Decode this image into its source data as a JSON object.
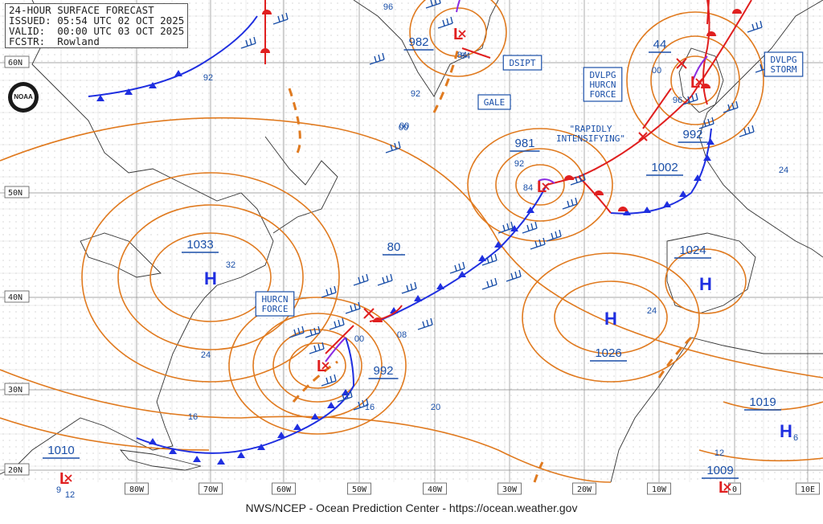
{
  "header": {
    "title": "24-HOUR SURFACE FORECAST",
    "issued": "ISSUED: 05:54 UTC 02 OCT 2025",
    "valid": "VALID:  00:00 UTC 03 OCT 2025",
    "forecaster": "FCSTR:  Rowland"
  },
  "footer": "NWS/NCEP - Ocean Prediction Center - https://ocean.weather.gov",
  "logo_text": "NOAA",
  "lat_labels": [
    "60N",
    "50N",
    "40N",
    "30N",
    "20N"
  ],
  "lon_labels": [
    "80W",
    "70W",
    "60W",
    "50W",
    "40W",
    "30W",
    "20W",
    "10W",
    "0",
    "10E"
  ],
  "pressure_centers": [
    {
      "type": "L",
      "value": "982"
    },
    {
      "type": "L",
      "value": "981"
    },
    {
      "type": "L",
      "value": "992"
    },
    {
      "type": "L",
      "value": "992"
    },
    {
      "type": "L",
      "value": "1010"
    },
    {
      "type": "L",
      "value": "1009"
    },
    {
      "type": "L",
      "value": "1002"
    },
    {
      "type": "H",
      "value": "1033"
    },
    {
      "type": "H",
      "value": "1026"
    },
    {
      "type": "H",
      "value": "1024"
    },
    {
      "type": "H",
      "value": "1019"
    },
    {
      "type": "H",
      "value": "44"
    },
    {
      "type": "H",
      "value": "80"
    }
  ],
  "warning_boxes": [
    "DSIPT",
    "GALE",
    "DVLPG\nHURCN\nFORCE",
    "DVLPG\nSTORM",
    "HURCN\nFORCE"
  ],
  "annotation": "\"RAPIDLY\nINTENSIFYING\"",
  "isobar_labels": [
    "96",
    "92",
    "00",
    "84",
    "92",
    "84",
    "00",
    "96",
    "24",
    "32",
    "24",
    "16",
    "08",
    "00",
    "16",
    "20",
    "24",
    "12",
    "6",
    "12",
    "9",
    "92",
    "00",
    "84"
  ],
  "colors": {
    "isobar": "#e07a1f",
    "cold_front": "#1f2fe0",
    "warm_front": "#e01f1f",
    "warning": "#1a4fa8",
    "grid": "#8a8a8a",
    "occluded": "#8a2be2"
  }
}
